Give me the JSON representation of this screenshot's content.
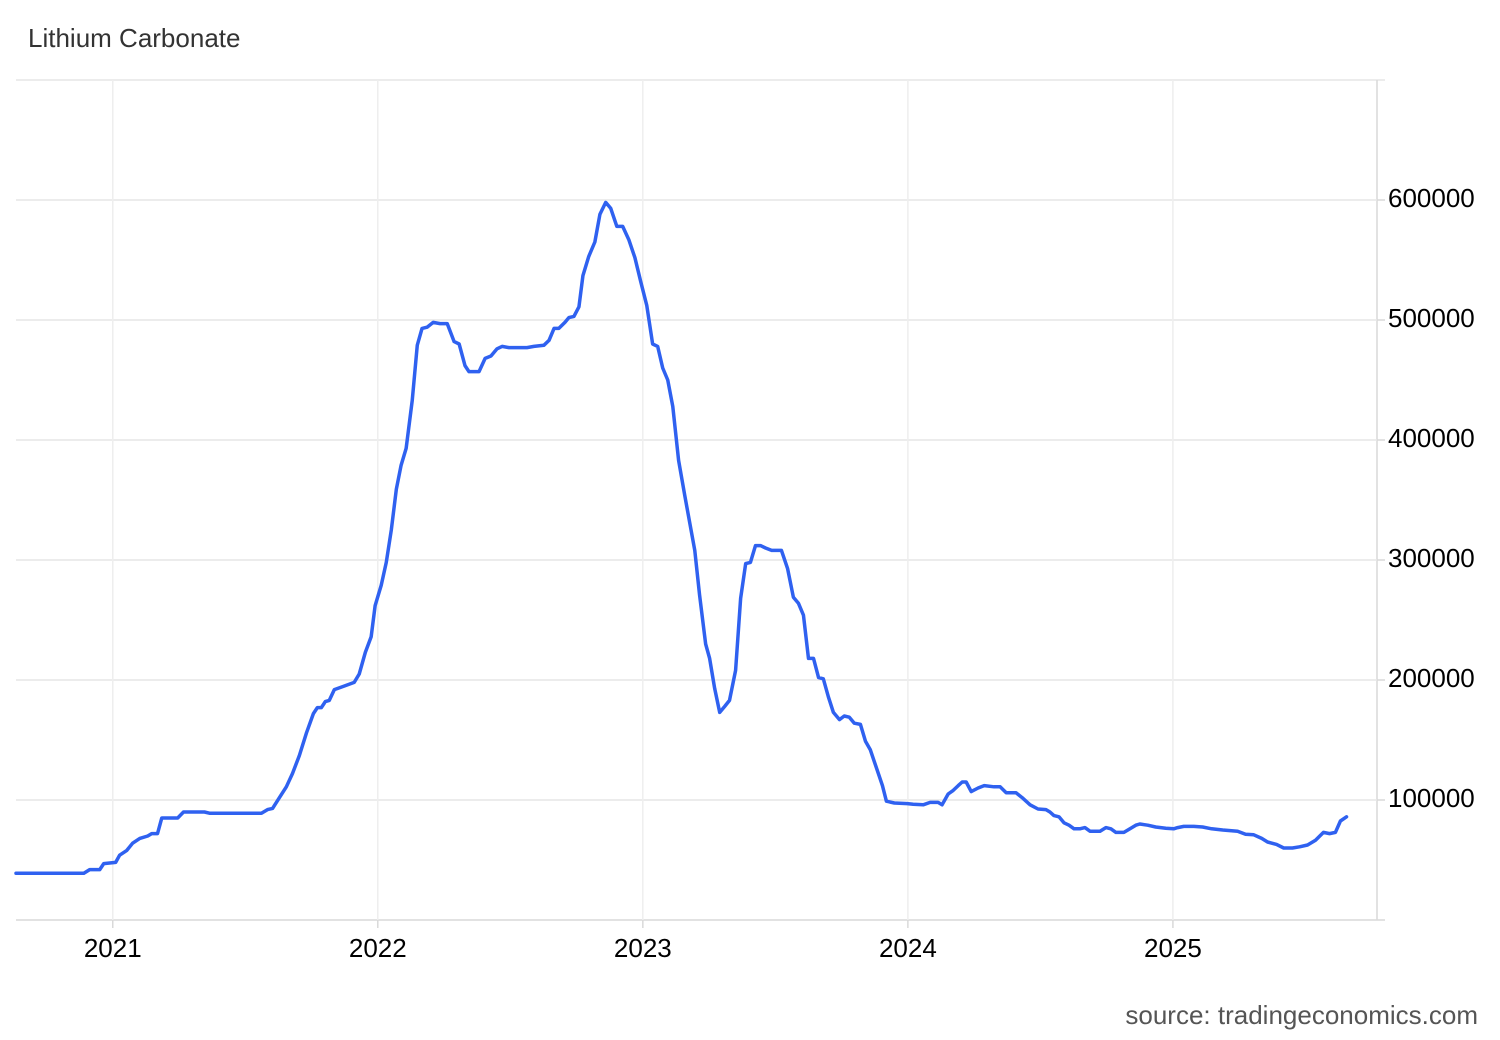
{
  "chart_data": {
    "type": "line",
    "title": "Lithium Carbonate",
    "source": "source: tradingeconomics.com",
    "color": "#2f61f0",
    "grid": true,
    "xlim": [
      2020.635,
      2025.77
    ],
    "xticks": [
      2021,
      2022,
      2023,
      2024,
      2025
    ],
    "ylim": [
      0,
      700000
    ],
    "yticks": [
      100000,
      200000,
      300000,
      400000,
      500000,
      600000
    ],
    "x": [
      2020.635,
      2020.891,
      2020.913,
      2020.951,
      2020.966,
      2021.011,
      2021.026,
      2021.053,
      2021.075,
      2021.102,
      2021.132,
      2021.147,
      2021.169,
      2021.185,
      2021.245,
      2021.267,
      2021.346,
      2021.365,
      2021.561,
      2021.584,
      2021.603,
      2021.629,
      2021.655,
      2021.678,
      2021.704,
      2021.731,
      2021.757,
      2021.772,
      2021.787,
      2021.802,
      2021.817,
      2021.836,
      2021.874,
      2021.911,
      2021.93,
      2021.953,
      2021.975,
      2021.99,
      2022.013,
      2022.032,
      2022.051,
      2022.07,
      2022.088,
      2022.107,
      2022.13,
      2022.149,
      2022.167,
      2022.186,
      2022.209,
      2022.235,
      2022.262,
      2022.288,
      2022.307,
      2022.329,
      2022.344,
      2022.382,
      2022.405,
      2022.427,
      2022.45,
      2022.469,
      2022.495,
      2022.563,
      2022.589,
      2022.627,
      2022.646,
      2022.665,
      2022.683,
      2022.706,
      2022.721,
      2022.74,
      2022.759,
      2022.774,
      2022.796,
      2022.819,
      2022.838,
      2022.86,
      2022.879,
      2022.902,
      2022.924,
      2022.947,
      2022.97,
      2022.992,
      2023.015,
      2023.037,
      2023.056,
      2023.075,
      2023.094,
      2023.113,
      2023.135,
      2023.158,
      2023.177,
      2023.196,
      2023.214,
      2023.237,
      2023.252,
      2023.271,
      2023.29,
      2023.309,
      2023.327,
      2023.35,
      2023.369,
      2023.388,
      2023.406,
      2023.425,
      2023.444,
      2023.463,
      2023.486,
      2023.523,
      2023.546,
      2023.568,
      2023.587,
      2023.606,
      2023.625,
      2023.644,
      2023.663,
      2023.681,
      2023.7,
      2023.719,
      2023.742,
      2023.76,
      2023.779,
      2023.798,
      2023.821,
      2023.84,
      2023.858,
      2023.881,
      2023.904,
      2023.919,
      2023.949,
      2023.998,
      2024.02,
      2024.058,
      2024.084,
      2024.114,
      2024.129,
      2024.152,
      2024.171,
      2024.19,
      2024.205,
      2024.22,
      2024.239,
      2024.265,
      2024.288,
      2024.325,
      2024.348,
      2024.371,
      2024.408,
      2024.431,
      2024.461,
      2024.491,
      2024.521,
      2024.536,
      2024.551,
      2024.57,
      2024.589,
      2024.608,
      2024.627,
      2024.649,
      2024.668,
      2024.687,
      2024.725,
      2024.747,
      2024.766,
      2024.785,
      2024.815,
      2024.838,
      2024.86,
      2024.875,
      2024.905,
      2024.935,
      2024.973,
      2025.003,
      2025.018,
      2025.041,
      2025.079,
      2025.112,
      2025.146,
      2025.188,
      2025.244,
      2025.274,
      2025.305,
      2025.335,
      2025.357,
      2025.391,
      2025.418,
      2025.451,
      2025.478,
      2025.508,
      2025.538,
      2025.568,
      2025.591,
      2025.613,
      2025.632,
      2025.655
    ],
    "values": [
      39000,
      39000,
      42000,
      42000,
      47000,
      48000,
      54000,
      58000,
      64000,
      68000,
      70000,
      72000,
      72000,
      85000,
      85000,
      90000,
      90000,
      89000,
      89000,
      92000,
      93000,
      102000,
      111000,
      122000,
      137000,
      156000,
      172000,
      177000,
      177000,
      182000,
      183000,
      192000,
      195000,
      198000,
      205000,
      223000,
      236000,
      262000,
      279000,
      298000,
      325000,
      359000,
      379000,
      393000,
      433000,
      479000,
      493000,
      494000,
      498000,
      497000,
      497000,
      482000,
      480000,
      462000,
      457000,
      457000,
      468000,
      470000,
      476000,
      478000,
      477000,
      477000,
      478000,
      479000,
      483000,
      493000,
      493000,
      498000,
      502000,
      503000,
      511000,
      537000,
      553000,
      565000,
      588000,
      598000,
      593000,
      578000,
      578000,
      567000,
      552000,
      532000,
      512000,
      480000,
      478000,
      460000,
      450000,
      428000,
      383000,
      354000,
      331000,
      308000,
      271000,
      230000,
      218000,
      193000,
      173000,
      178000,
      183000,
      208000,
      268000,
      297000,
      298000,
      312000,
      312000,
      310000,
      308000,
      308000,
      293000,
      269000,
      264000,
      254000,
      218000,
      218000,
      202000,
      201000,
      186000,
      173000,
      167000,
      170000,
      169000,
      164000,
      163000,
      149000,
      142000,
      127000,
      112000,
      99000,
      97500,
      97000,
      96500,
      96000,
      98000,
      98000,
      96000,
      105000,
      108000,
      112000,
      115000,
      115000,
      107000,
      110000,
      112000,
      111000,
      111000,
      106000,
      106000,
      102000,
      96000,
      92500,
      92000,
      90000,
      87000,
      86000,
      81000,
      79000,
      76000,
      76000,
      77000,
      74000,
      74000,
      77000,
      76000,
      73000,
      73000,
      76000,
      79000,
      80000,
      79000,
      77500,
      76500,
      76000,
      77000,
      78000,
      78000,
      77500,
      76000,
      75000,
      74000,
      71500,
      71000,
      68000,
      65000,
      63000,
      60000,
      60000,
      61000,
      62500,
      66500,
      73000,
      72000,
      73000,
      82500,
      86000
    ]
  }
}
